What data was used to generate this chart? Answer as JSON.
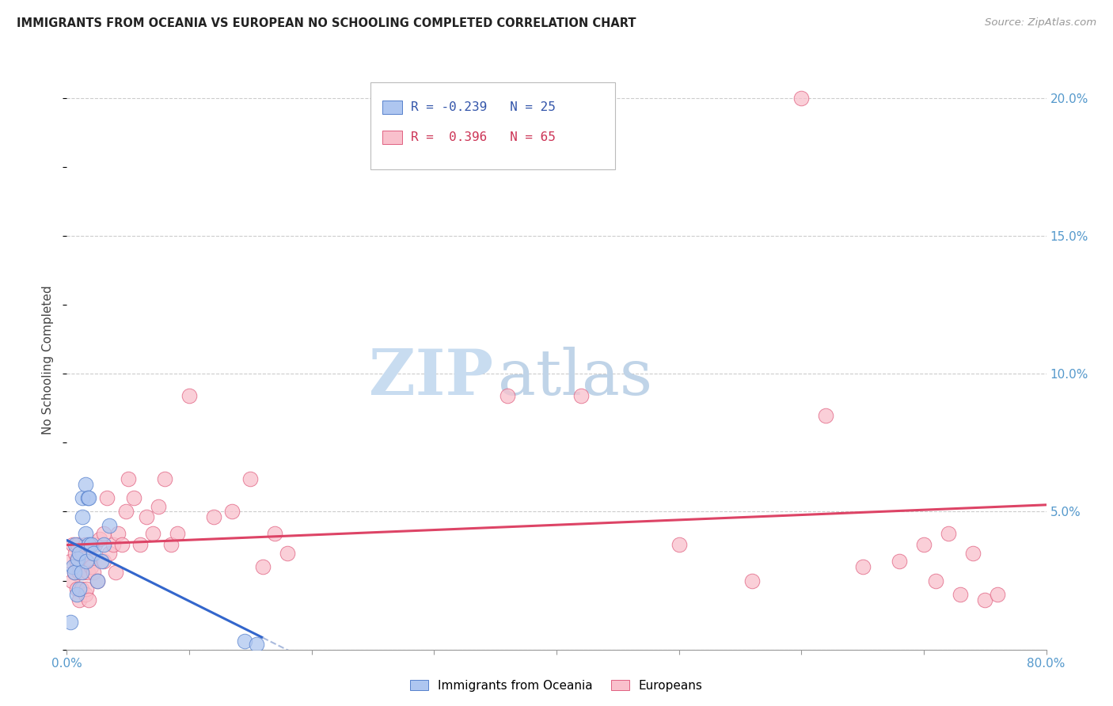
{
  "title": "IMMIGRANTS FROM OCEANIA VS EUROPEAN NO SCHOOLING COMPLETED CORRELATION CHART",
  "source": "Source: ZipAtlas.com",
  "ylabel": "No Schooling Completed",
  "xlim": [
    0,
    0.8
  ],
  "ylim": [
    0,
    0.21
  ],
  "yticks_right": [
    0.0,
    0.05,
    0.1,
    0.15,
    0.2
  ],
  "yticklabels_right": [
    "",
    "5.0%",
    "10.0%",
    "15.0%",
    "20.0%"
  ],
  "legend_r_blue": "-0.239",
  "legend_n_blue": "25",
  "legend_r_pink": "0.396",
  "legend_n_pink": "65",
  "blue_fill": "#aec6f0",
  "blue_edge": "#5580cc",
  "pink_fill": "#f9c0cc",
  "pink_edge": "#e06080",
  "trend_blue_color": "#3366cc",
  "trend_pink_color": "#dd4466",
  "trend_blue_dash_color": "#aabbdd",
  "watermark_zip_color": "#c8dcf0",
  "watermark_atlas_color": "#c0d4e8",
  "blue_points_x": [
    0.003,
    0.005,
    0.006,
    0.007,
    0.008,
    0.009,
    0.01,
    0.01,
    0.012,
    0.013,
    0.013,
    0.015,
    0.015,
    0.016,
    0.017,
    0.018,
    0.018,
    0.02,
    0.022,
    0.025,
    0.028,
    0.03,
    0.035,
    0.145,
    0.155
  ],
  "blue_points_y": [
    0.01,
    0.03,
    0.028,
    0.038,
    0.02,
    0.033,
    0.022,
    0.035,
    0.028,
    0.055,
    0.048,
    0.042,
    0.06,
    0.032,
    0.055,
    0.038,
    0.055,
    0.038,
    0.035,
    0.025,
    0.032,
    0.038,
    0.045,
    0.003,
    0.002
  ],
  "pink_points_x": [
    0.003,
    0.004,
    0.005,
    0.006,
    0.007,
    0.008,
    0.008,
    0.009,
    0.01,
    0.01,
    0.011,
    0.012,
    0.013,
    0.014,
    0.015,
    0.015,
    0.016,
    0.017,
    0.018,
    0.019,
    0.02,
    0.022,
    0.023,
    0.025,
    0.027,
    0.03,
    0.03,
    0.033,
    0.035,
    0.038,
    0.04,
    0.042,
    0.045,
    0.048,
    0.05,
    0.055,
    0.06,
    0.065,
    0.07,
    0.075,
    0.08,
    0.085,
    0.09,
    0.1,
    0.12,
    0.135,
    0.15,
    0.16,
    0.17,
    0.18,
    0.36,
    0.42,
    0.5,
    0.56,
    0.6,
    0.62,
    0.65,
    0.68,
    0.7,
    0.71,
    0.72,
    0.73,
    0.74,
    0.75,
    0.76
  ],
  "pink_points_y": [
    0.032,
    0.025,
    0.038,
    0.028,
    0.035,
    0.022,
    0.032,
    0.038,
    0.018,
    0.028,
    0.03,
    0.022,
    0.035,
    0.028,
    0.02,
    0.038,
    0.022,
    0.028,
    0.018,
    0.032,
    0.03,
    0.028,
    0.038,
    0.025,
    0.04,
    0.032,
    0.042,
    0.055,
    0.035,
    0.038,
    0.028,
    0.042,
    0.038,
    0.05,
    0.062,
    0.055,
    0.038,
    0.048,
    0.042,
    0.052,
    0.062,
    0.038,
    0.042,
    0.092,
    0.048,
    0.05,
    0.062,
    0.03,
    0.042,
    0.035,
    0.092,
    0.092,
    0.038,
    0.025,
    0.2,
    0.085,
    0.03,
    0.032,
    0.038,
    0.025,
    0.042,
    0.02,
    0.035,
    0.018,
    0.02
  ]
}
